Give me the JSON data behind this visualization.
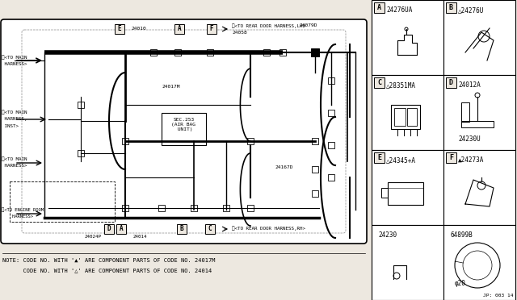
{
  "bg_color": "#ede8e0",
  "line_color": "#000000",
  "white": "#ffffff",
  "gray": "#c8c8c8",
  "note_line1": "NOTE: CODE NO. WITH '▲' ARE COMPONENT PARTS OF CODE NO. 24017M",
  "note_line2": "      CODE NO. WITH '△' ARE COMPONENT PARTS OF CODE NO. 24014",
  "watermark": "JP: 003 14",
  "fig_width": 6.4,
  "fig_height": 3.72,
  "dpi": 100
}
